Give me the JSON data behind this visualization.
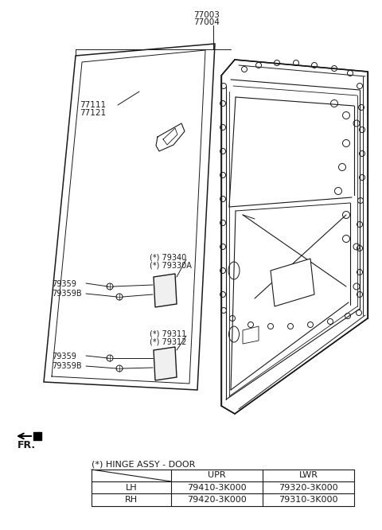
{
  "background_color": "#ffffff",
  "line_color": "#1a1a1a",
  "part_numbers": {
    "top_label1": "77003",
    "top_label2": "77004",
    "left_label1": "77111",
    "left_label2": "77121",
    "mid_upper1": "(*) 79340",
    "mid_upper2": "(*) 79330A",
    "left_mid1": "79359",
    "left_mid2": "79359B",
    "mid_lower1": "(*) 79311",
    "mid_lower2": "(*) 79312",
    "left_low1": "79359",
    "left_low2": "79359B"
  },
  "table": {
    "title": "(*) HINGE ASSY - DOOR",
    "headers": [
      "",
      "UPR",
      "LWR"
    ],
    "rows": [
      [
        "LH",
        "79410-3K000",
        "79320-3K000"
      ],
      [
        "RH",
        "79420-3K000",
        "79310-3K000"
      ]
    ]
  },
  "fr_label": "FR.",
  "fig_width": 4.8,
  "fig_height": 6.66,
  "dpi": 100
}
